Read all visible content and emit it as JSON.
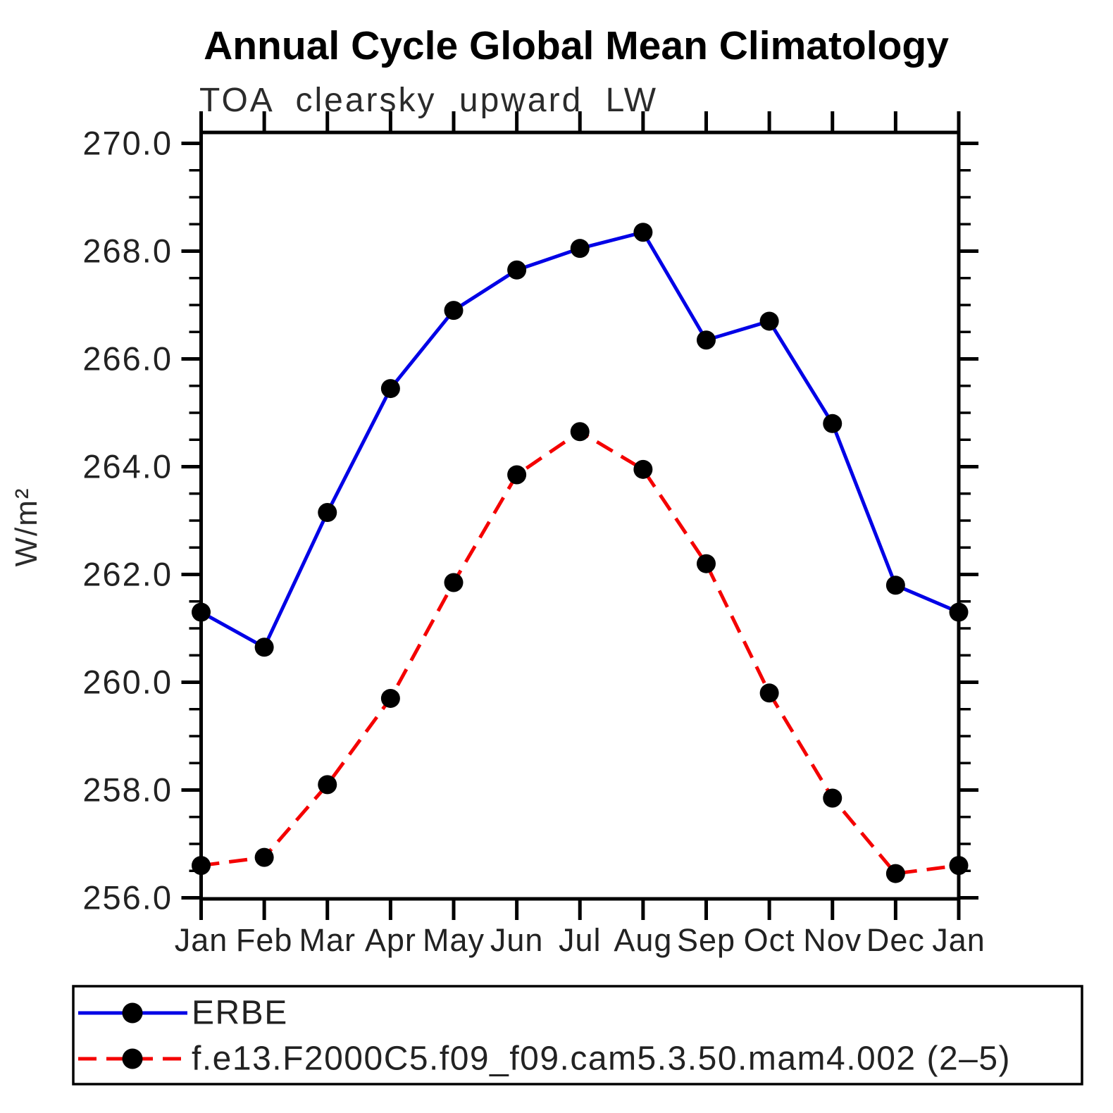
{
  "title": "Annual Cycle Global Mean Climatology",
  "subtitle": "TOA clearsky upward LW",
  "ylabel": "W/m²",
  "chart_data": {
    "type": "line",
    "categories": [
      "Jan",
      "Feb",
      "Mar",
      "Apr",
      "May",
      "Jun",
      "Jul",
      "Aug",
      "Sep",
      "Oct",
      "Nov",
      "Dec",
      "Jan"
    ],
    "series": [
      {
        "name": "ERBE",
        "color": "#0000e6",
        "line_style": "solid",
        "marker": "filled-circle",
        "marker_color": "#000000",
        "values": [
          261.3,
          260.65,
          263.15,
          265.45,
          266.9,
          267.65,
          268.05,
          268.35,
          266.35,
          266.7,
          264.8,
          261.8,
          261.3
        ]
      },
      {
        "name": "f.e13.F2000C5.f09_f09.cam5.3.50.mam4.002 (2–5)",
        "color": "#f40000",
        "line_style": "dashed",
        "marker": "filled-circle",
        "marker_color": "#000000",
        "values": [
          256.6,
          256.75,
          258.1,
          259.7,
          261.85,
          263.85,
          264.65,
          263.95,
          262.2,
          259.8,
          257.85,
          256.45,
          256.6
        ]
      }
    ],
    "xlabel": "",
    "ylabel": "W/m²",
    "ylim": [
      256.0,
      270.0
    ],
    "ytick_major_step": 2.0,
    "ytick_minor_step": 0.5,
    "ytick_labels": [
      "256.0",
      "258.0",
      "260.0",
      "262.0",
      "264.0",
      "266.0",
      "268.0",
      "270.0"
    ],
    "grid": false,
    "legend_position": "bottom-left-box"
  }
}
